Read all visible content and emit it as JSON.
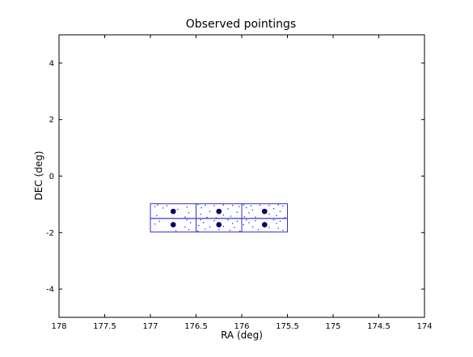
{
  "chart_data": {
    "type": "scatter",
    "title": "Observed pointings",
    "xlabel": "RA (deg)",
    "ylabel": "DEC (deg)",
    "xlim": [
      178,
      174
    ],
    "ylim": [
      -5,
      5
    ],
    "x_ticks": [
      178,
      177.5,
      177,
      176.5,
      176,
      175.5,
      175,
      174.5,
      174
    ],
    "x_tick_labels": [
      "178",
      "177.5",
      "177",
      "176.5",
      "176",
      "175.5",
      "175",
      "174.5",
      "174"
    ],
    "y_ticks": [
      -4,
      -2,
      0,
      2,
      4
    ],
    "y_tick_labels": [
      "-4",
      "-2",
      "0",
      "2",
      "4"
    ],
    "grid": false,
    "colors": {
      "marker": "#00008b",
      "box": "#3333cc",
      "points": "#0000ff"
    },
    "pointings": [
      {
        "ra": 176.75,
        "dec": -1.25
      },
      {
        "ra": 176.25,
        "dec": -1.25
      },
      {
        "ra": 175.75,
        "dec": -1.25
      },
      {
        "ra": 176.75,
        "dec": -1.72
      },
      {
        "ra": 176.25,
        "dec": -1.72
      },
      {
        "ra": 175.75,
        "dec": -1.72
      }
    ],
    "footprints": [
      {
        "ra_min": 176.5,
        "ra_max": 177.0,
        "dec_min": -1.5,
        "dec_max": -0.98
      },
      {
        "ra_min": 176.0,
        "ra_max": 176.5,
        "dec_min": -1.5,
        "dec_max": -0.98
      },
      {
        "ra_min": 175.5,
        "ra_max": 176.0,
        "dec_min": -1.5,
        "dec_max": -0.98
      },
      {
        "ra_min": 176.5,
        "ra_max": 177.0,
        "dec_min": -1.98,
        "dec_max": -1.5
      },
      {
        "ra_min": 176.0,
        "ra_max": 176.5,
        "dec_min": -1.98,
        "dec_max": -1.5
      },
      {
        "ra_min": 175.5,
        "ra_max": 176.0,
        "dec_min": -1.98,
        "dec_max": -1.5
      }
    ],
    "sources": [
      [
        176.92,
        -1.02
      ],
      [
        176.82,
        -1.05
      ],
      [
        176.95,
        -1.08
      ],
      [
        176.6,
        -1.1
      ],
      [
        176.86,
        -1.13
      ],
      [
        176.7,
        -1.18
      ],
      [
        176.58,
        -1.3
      ],
      [
        176.93,
        -1.4
      ],
      [
        176.62,
        -1.45
      ],
      [
        176.48,
        -1.0
      ],
      [
        176.4,
        -1.03
      ],
      [
        176.3,
        -1.05
      ],
      [
        176.2,
        -1.02
      ],
      [
        176.1,
        -1.04
      ],
      [
        176.03,
        -1.08
      ],
      [
        176.44,
        -1.12
      ],
      [
        176.15,
        -1.16
      ],
      [
        176.35,
        -1.25
      ],
      [
        176.05,
        -1.28
      ],
      [
        176.45,
        -1.35
      ],
      [
        176.2,
        -1.38
      ],
      [
        176.12,
        -1.42
      ],
      [
        176.38,
        -1.46
      ],
      [
        176.28,
        -1.48
      ],
      [
        175.98,
        -1.02
      ],
      [
        175.9,
        -1.05
      ],
      [
        175.8,
        -1.03
      ],
      [
        175.7,
        -1.04
      ],
      [
        175.6,
        -1.02
      ],
      [
        175.55,
        -1.06
      ],
      [
        175.95,
        -1.12
      ],
      [
        175.65,
        -1.15
      ],
      [
        175.88,
        -1.2
      ],
      [
        175.58,
        -1.25
      ],
      [
        175.92,
        -1.3
      ],
      [
        175.7,
        -1.35
      ],
      [
        175.62,
        -1.4
      ],
      [
        175.97,
        -1.44
      ],
      [
        175.85,
        -1.45
      ],
      [
        175.53,
        -1.47
      ],
      [
        176.6,
        -1.55
      ],
      [
        176.9,
        -1.6
      ],
      [
        176.56,
        -1.65
      ],
      [
        176.95,
        -1.7
      ],
      [
        176.62,
        -1.8
      ],
      [
        176.58,
        -1.9
      ],
      [
        176.72,
        -1.93
      ],
      [
        176.45,
        -1.55
      ],
      [
        176.3,
        -1.58
      ],
      [
        176.15,
        -1.55
      ],
      [
        176.05,
        -1.6
      ],
      [
        176.42,
        -1.65
      ],
      [
        176.1,
        -1.68
      ],
      [
        176.47,
        -1.75
      ],
      [
        176.35,
        -1.8
      ],
      [
        176.2,
        -1.78
      ],
      [
        176.08,
        -1.82
      ],
      [
        176.4,
        -1.88
      ],
      [
        176.25,
        -1.9
      ],
      [
        176.13,
        -1.92
      ],
      [
        176.48,
        -1.95
      ],
      [
        176.02,
        -1.95
      ],
      [
        175.95,
        -1.55
      ],
      [
        175.85,
        -1.58
      ],
      [
        175.65,
        -1.55
      ],
      [
        175.58,
        -1.6
      ],
      [
        175.92,
        -1.65
      ],
      [
        175.62,
        -1.68
      ],
      [
        175.98,
        -1.72
      ],
      [
        175.88,
        -1.8
      ],
      [
        175.7,
        -1.82
      ],
      [
        175.6,
        -1.85
      ],
      [
        175.82,
        -1.9
      ],
      [
        175.55,
        -1.92
      ]
    ]
  }
}
